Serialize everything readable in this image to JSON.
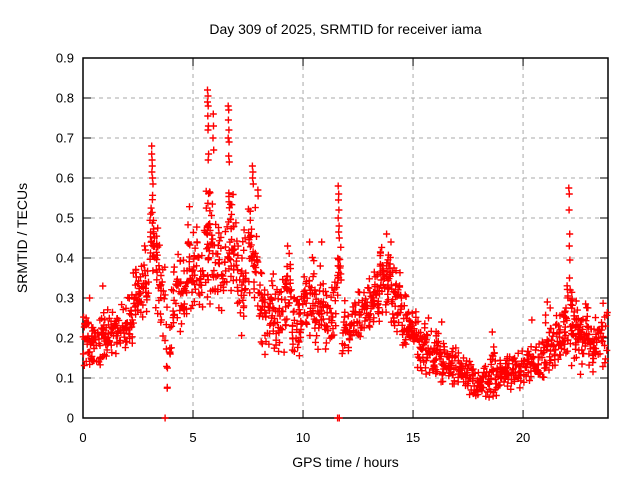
{
  "window": {
    "title": "Day 309 of 2025, SRMTID for receiver iama"
  },
  "chart_data": {
    "type": "scatter",
    "title": "Day 309 of 2025, SRMTID for receiver iama",
    "xlabel": "GPS time / hours",
    "ylabel": "SRMTID / TECUs",
    "xlim": [
      0,
      23.86
    ],
    "ylim": [
      0,
      0.9
    ],
    "xtick_values": [
      0,
      5,
      10,
      15,
      20
    ],
    "xtick_labels": [
      "0",
      "5",
      "10",
      "15",
      "20"
    ],
    "ytick_values": [
      0,
      0.1,
      0.2,
      0.3,
      0.4,
      0.5,
      0.6,
      0.7,
      0.8,
      0.9
    ],
    "ytick_labels": [
      "0",
      "0.1",
      "0.2",
      "0.3",
      "0.4",
      "0.5",
      "0.6",
      "0.7",
      "0.8",
      "0.9"
    ],
    "grid": true,
    "legend": false,
    "marker": "plus",
    "marker_color": "#ff0000",
    "grid_color": "#a8a8a8",
    "axis_color": "#000000",
    "series_name": "SRMTID",
    "seed": 309,
    "density_bands_format": [
      "hour_start",
      "hour_end",
      "y_min",
      "y_max",
      "n_points"
    ],
    "density_bands": [
      [
        0.0,
        0.25,
        0.11,
        0.3,
        22
      ],
      [
        0.25,
        0.5,
        0.12,
        0.27,
        20
      ],
      [
        0.5,
        0.75,
        0.12,
        0.26,
        18
      ],
      [
        0.75,
        1.0,
        0.13,
        0.33,
        20
      ],
      [
        1.0,
        1.25,
        0.12,
        0.28,
        20
      ],
      [
        1.25,
        1.5,
        0.13,
        0.3,
        18
      ],
      [
        1.5,
        1.75,
        0.15,
        0.27,
        18
      ],
      [
        1.75,
        2.0,
        0.16,
        0.3,
        18
      ],
      [
        2.0,
        2.25,
        0.17,
        0.33,
        18
      ],
      [
        2.25,
        2.5,
        0.2,
        0.38,
        20
      ],
      [
        2.5,
        2.75,
        0.22,
        0.4,
        18
      ],
      [
        2.75,
        3.0,
        0.25,
        0.45,
        18
      ],
      [
        3.0,
        3.25,
        0.28,
        0.58,
        26
      ],
      [
        3.25,
        3.5,
        0.22,
        0.55,
        20
      ],
      [
        3.5,
        3.75,
        0.1,
        0.45,
        16
      ],
      [
        3.75,
        4.0,
        0.06,
        0.35,
        12
      ],
      [
        4.0,
        4.25,
        0.15,
        0.4,
        14
      ],
      [
        4.25,
        4.5,
        0.18,
        0.45,
        18
      ],
      [
        4.5,
        4.75,
        0.22,
        0.48,
        18
      ],
      [
        4.75,
        5.0,
        0.22,
        0.55,
        18
      ],
      [
        5.0,
        5.25,
        0.25,
        0.5,
        18
      ],
      [
        5.25,
        5.5,
        0.25,
        0.45,
        16
      ],
      [
        5.5,
        5.75,
        0.28,
        0.62,
        24
      ],
      [
        5.75,
        6.0,
        0.28,
        0.6,
        20
      ],
      [
        6.0,
        6.25,
        0.25,
        0.55,
        18
      ],
      [
        6.25,
        6.5,
        0.22,
        0.5,
        16
      ],
      [
        6.5,
        6.75,
        0.28,
        0.62,
        24
      ],
      [
        6.75,
        7.0,
        0.25,
        0.6,
        18
      ],
      [
        7.0,
        7.25,
        0.2,
        0.45,
        16
      ],
      [
        7.25,
        7.5,
        0.22,
        0.5,
        16
      ],
      [
        7.5,
        7.75,
        0.28,
        0.58,
        22
      ],
      [
        7.75,
        8.0,
        0.25,
        0.55,
        18
      ],
      [
        8.0,
        8.25,
        0.15,
        0.4,
        18
      ],
      [
        8.25,
        8.5,
        0.13,
        0.35,
        18
      ],
      [
        8.5,
        8.75,
        0.15,
        0.38,
        18
      ],
      [
        8.75,
        9.0,
        0.14,
        0.35,
        18
      ],
      [
        9.0,
        9.25,
        0.15,
        0.4,
        18
      ],
      [
        9.25,
        9.5,
        0.15,
        0.42,
        18
      ],
      [
        9.5,
        9.75,
        0.14,
        0.35,
        18
      ],
      [
        9.75,
        10.0,
        0.15,
        0.33,
        18
      ],
      [
        10.0,
        10.25,
        0.16,
        0.4,
        18
      ],
      [
        10.25,
        10.5,
        0.18,
        0.42,
        18
      ],
      [
        10.5,
        10.75,
        0.15,
        0.38,
        18
      ],
      [
        10.75,
        11.0,
        0.15,
        0.42,
        18
      ],
      [
        11.0,
        11.25,
        0.14,
        0.35,
        16
      ],
      [
        11.25,
        11.5,
        0.15,
        0.38,
        16
      ],
      [
        11.5,
        11.75,
        0.28,
        0.44,
        18
      ],
      [
        11.75,
        12.0,
        0.15,
        0.32,
        16
      ],
      [
        12.0,
        12.25,
        0.14,
        0.3,
        16
      ],
      [
        12.25,
        12.5,
        0.16,
        0.32,
        16
      ],
      [
        12.5,
        12.75,
        0.18,
        0.34,
        16
      ],
      [
        12.75,
        13.0,
        0.2,
        0.36,
        18
      ],
      [
        13.0,
        13.25,
        0.2,
        0.38,
        18
      ],
      [
        13.25,
        13.5,
        0.22,
        0.4,
        20
      ],
      [
        13.5,
        13.75,
        0.25,
        0.44,
        22
      ],
      [
        13.75,
        14.0,
        0.25,
        0.45,
        22
      ],
      [
        14.0,
        14.25,
        0.22,
        0.42,
        20
      ],
      [
        14.25,
        14.5,
        0.18,
        0.38,
        18
      ],
      [
        14.5,
        14.75,
        0.15,
        0.32,
        18
      ],
      [
        14.75,
        15.0,
        0.13,
        0.3,
        18
      ],
      [
        15.0,
        15.25,
        0.12,
        0.28,
        18
      ],
      [
        15.25,
        15.5,
        0.1,
        0.25,
        18
      ],
      [
        15.5,
        15.75,
        0.1,
        0.25,
        18
      ],
      [
        15.75,
        16.0,
        0.09,
        0.22,
        18
      ],
      [
        16.0,
        16.25,
        0.09,
        0.23,
        18
      ],
      [
        16.25,
        16.5,
        0.08,
        0.2,
        18
      ],
      [
        16.5,
        16.75,
        0.08,
        0.19,
        16
      ],
      [
        16.75,
        17.0,
        0.07,
        0.18,
        16
      ],
      [
        17.0,
        17.25,
        0.07,
        0.17,
        16
      ],
      [
        17.25,
        17.5,
        0.06,
        0.16,
        16
      ],
      [
        17.5,
        17.75,
        0.05,
        0.15,
        16
      ],
      [
        17.75,
        18.0,
        0.04,
        0.14,
        16
      ],
      [
        18.0,
        18.25,
        0.04,
        0.13,
        16
      ],
      [
        18.25,
        18.5,
        0.04,
        0.14,
        16
      ],
      [
        18.5,
        18.75,
        0.05,
        0.21,
        18
      ],
      [
        18.75,
        19.0,
        0.05,
        0.16,
        16
      ],
      [
        19.0,
        19.25,
        0.06,
        0.16,
        16
      ],
      [
        19.25,
        19.5,
        0.06,
        0.17,
        16
      ],
      [
        19.5,
        19.75,
        0.07,
        0.18,
        16
      ],
      [
        19.75,
        20.0,
        0.07,
        0.18,
        16
      ],
      [
        20.0,
        20.25,
        0.07,
        0.18,
        16
      ],
      [
        20.25,
        20.5,
        0.08,
        0.2,
        16
      ],
      [
        20.5,
        20.75,
        0.07,
        0.19,
        16
      ],
      [
        20.75,
        21.0,
        0.08,
        0.22,
        16
      ],
      [
        21.0,
        21.25,
        0.09,
        0.28,
        18
      ],
      [
        21.25,
        21.5,
        0.09,
        0.24,
        16
      ],
      [
        21.5,
        21.75,
        0.1,
        0.26,
        18
      ],
      [
        21.75,
        22.0,
        0.1,
        0.3,
        20
      ],
      [
        22.0,
        22.25,
        0.12,
        0.35,
        20
      ],
      [
        22.25,
        22.5,
        0.12,
        0.32,
        20
      ],
      [
        22.5,
        22.75,
        0.1,
        0.28,
        20
      ],
      [
        22.75,
        23.0,
        0.12,
        0.3,
        20
      ],
      [
        23.0,
        23.25,
        0.1,
        0.26,
        18
      ],
      [
        23.25,
        23.5,
        0.1,
        0.28,
        18
      ],
      [
        23.5,
        23.86,
        0.12,
        0.3,
        18
      ]
    ],
    "spike_points": [
      [
        3.12,
        0.68
      ],
      [
        3.12,
        0.66
      ],
      [
        3.14,
        0.645
      ],
      [
        3.15,
        0.63
      ],
      [
        3.13,
        0.615
      ],
      [
        3.16,
        0.6
      ],
      [
        3.18,
        0.585
      ],
      [
        5.66,
        0.82
      ],
      [
        5.68,
        0.805
      ],
      [
        5.66,
        0.79
      ],
      [
        5.69,
        0.78
      ],
      [
        5.67,
        0.755
      ],
      [
        5.7,
        0.73
      ],
      [
        5.68,
        0.72
      ],
      [
        5.71,
        0.66
      ],
      [
        5.69,
        0.645
      ],
      [
        5.92,
        0.76
      ],
      [
        5.93,
        0.73
      ],
      [
        5.91,
        0.7
      ],
      [
        5.94,
        0.67
      ],
      [
        6.6,
        0.78
      ],
      [
        6.62,
        0.77
      ],
      [
        6.61,
        0.745
      ],
      [
        6.63,
        0.72
      ],
      [
        6.6,
        0.7
      ],
      [
        6.64,
        0.69
      ],
      [
        6.62,
        0.655
      ],
      [
        6.65,
        0.64
      ],
      [
        7.7,
        0.63
      ],
      [
        7.72,
        0.615
      ],
      [
        7.71,
        0.6
      ],
      [
        7.74,
        0.585
      ],
      [
        7.95,
        0.57
      ],
      [
        7.96,
        0.555
      ],
      [
        11.6,
        0.58
      ],
      [
        11.62,
        0.56
      ],
      [
        11.61,
        0.545
      ],
      [
        11.63,
        0.52
      ],
      [
        11.6,
        0.5
      ],
      [
        11.64,
        0.48
      ],
      [
        11.62,
        0.465
      ],
      [
        11.65,
        0.45
      ],
      [
        22.08,
        0.575
      ],
      [
        22.1,
        0.56
      ],
      [
        22.09,
        0.52
      ],
      [
        22.12,
        0.46
      ],
      [
        22.1,
        0.43
      ],
      [
        22.13,
        0.395
      ],
      [
        22.11,
        0.35
      ],
      [
        22.14,
        0.32
      ],
      [
        0.3,
        0.3
      ],
      [
        0.9,
        0.33
      ],
      [
        2.4,
        0.37
      ],
      [
        9.3,
        0.43
      ],
      [
        10.3,
        0.44
      ],
      [
        10.85,
        0.44
      ],
      [
        13.8,
        0.46
      ],
      [
        14.0,
        0.44
      ],
      [
        15.7,
        0.25
      ],
      [
        16.3,
        0.24
      ],
      [
        18.6,
        0.215
      ],
      [
        20.4,
        0.245
      ],
      [
        21.1,
        0.29
      ]
    ],
    "zero_points": [
      [
        3.73,
        0.0
      ],
      [
        11.57,
        0.0
      ],
      [
        11.65,
        0.0
      ]
    ]
  }
}
